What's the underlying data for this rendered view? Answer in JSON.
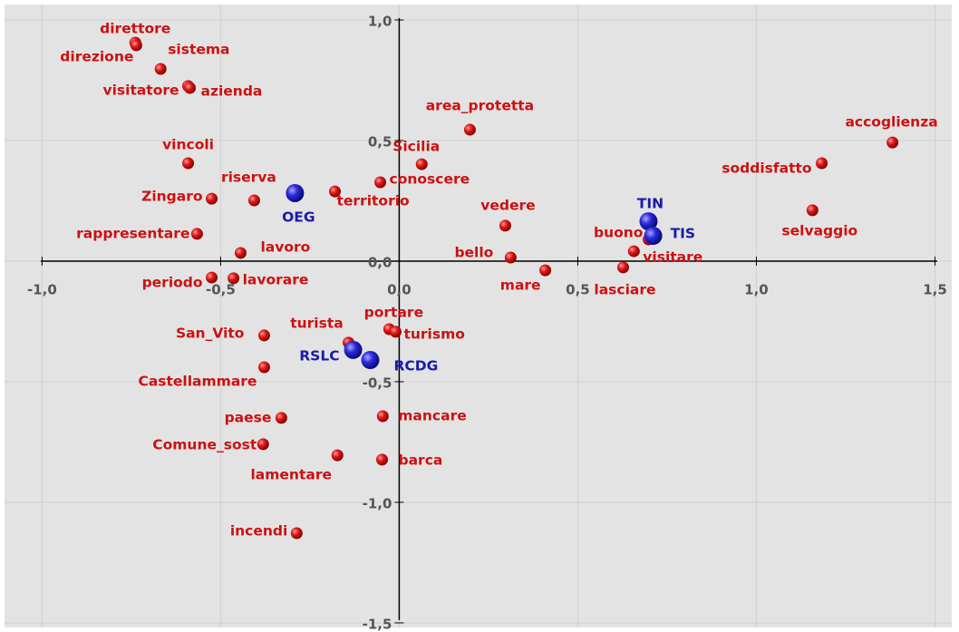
{
  "chart_data": {
    "type": "scatter",
    "xlim": [
      -1.105,
      1.547
    ],
    "ylim": [
      -1.519,
      1.064
    ],
    "grid": true,
    "xticks": [
      {
        "value": -1.0,
        "label": "-1,0"
      },
      {
        "value": -0.5,
        "label": "-0,5"
      },
      {
        "value": 0,
        "label": "0,0"
      },
      {
        "value": 0.5,
        "label": "0,5"
      },
      {
        "value": 1.0,
        "label": "1,0"
      },
      {
        "value": 1.5,
        "label": "1,5"
      }
    ],
    "yticks": [
      {
        "value": -1.5,
        "label": "-1,5"
      },
      {
        "value": -1.0,
        "label": "-1,0"
      },
      {
        "value": -0.5,
        "label": "-0,5"
      },
      {
        "value": 0,
        "label": "0,0"
      },
      {
        "value": 0.5,
        "label": "0,5"
      },
      {
        "value": 1.0,
        "label": "1,0"
      }
    ],
    "series": [
      {
        "color": "#cc1111",
        "labels": [
          "direttore",
          "direzione",
          "sistema",
          "visitatore",
          "azienda",
          "area_protetta",
          "accoglienza",
          "vincoli",
          "Sicilia",
          "soddisfatto",
          "conoscere",
          "riserva",
          "territorio",
          "Zingaro",
          "selvaggio",
          "vedere",
          "rappresentare",
          "buono",
          "visitare",
          "lasciare",
          "lavoro",
          "bello",
          "mare",
          "periodo",
          "lavorare",
          "portare",
          "turismo",
          "turista",
          "San_Vito",
          "Castellammare",
          "mancare",
          "paese",
          "Comune_sost",
          "lamentare",
          "barca",
          "incendi"
        ],
        "x": [
          -0.739,
          -0.736,
          -0.668,
          -0.591,
          -0.586,
          0.198,
          1.381,
          -0.591,
          0.063,
          1.183,
          -0.053,
          -0.406,
          -0.18,
          -0.525,
          1.157,
          0.297,
          -0.566,
          0.698,
          0.657,
          0.627,
          -0.444,
          0.312,
          0.409,
          -0.525,
          -0.464,
          -0.028,
          -0.01,
          -0.142,
          -0.378,
          -0.378,
          -0.046,
          -0.33,
          -0.381,
          -0.173,
          -0.048,
          -0.287
        ],
        "values": [
          0.906,
          0.895,
          0.797,
          0.726,
          0.718,
          0.545,
          0.492,
          0.406,
          0.402,
          0.406,
          0.327,
          0.252,
          0.289,
          0.259,
          0.211,
          0.147,
          0.113,
          0.09,
          0.041,
          -0.026,
          0.034,
          0.015,
          -0.038,
          -0.068,
          -0.071,
          -0.282,
          -0.293,
          -0.338,
          -0.308,
          -0.44,
          -0.643,
          -0.65,
          -0.759,
          -0.805,
          -0.823,
          -1.128
        ]
      },
      {
        "color": "#1a1aaa",
        "labels": [
          "OEG",
          "TIN",
          "TIS",
          "RSLC",
          "RCDG"
        ],
        "x": [
          -0.292,
          0.698,
          0.711,
          -0.129,
          -0.081
        ],
        "values": [
          0.282,
          0.165,
          0.105,
          -0.368,
          -0.41
        ]
      }
    ]
  }
}
